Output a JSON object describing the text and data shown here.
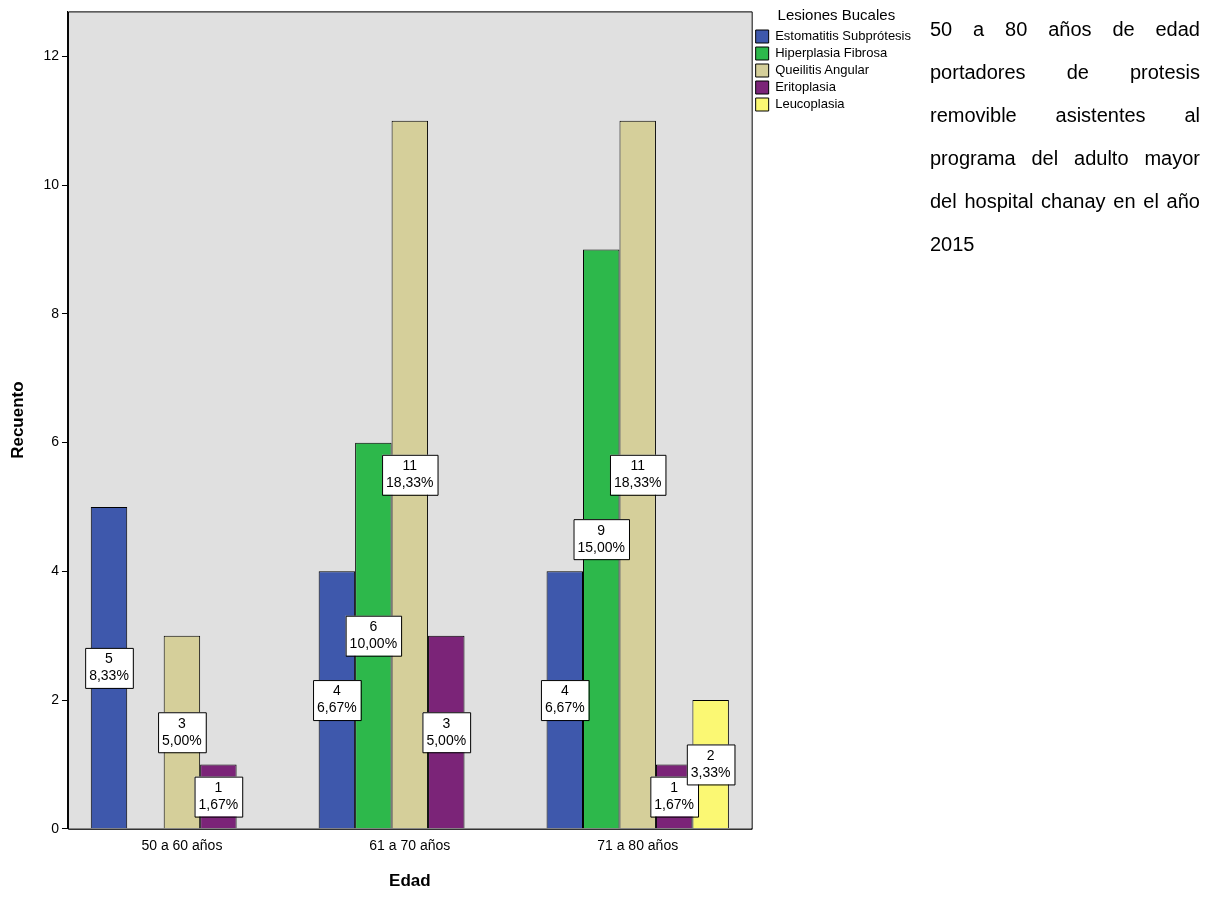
{
  "chart_data": {
    "type": "bar",
    "xlabel": "Edad",
    "ylabel": "Recuento",
    "legend_title": "Lesiones Bucales",
    "categories": [
      "50 a 60 años",
      "61 a 70 años",
      "71 a 80 años"
    ],
    "series": [
      {
        "name": "Estomatitis Subprótesis",
        "color": "#3e58ac",
        "values": [
          5,
          4,
          4
        ],
        "value_labels": [
          "5\n8,33%",
          "4\n6,67%",
          "4\n6,67%"
        ]
      },
      {
        "name": "Hiperplasia Fibrosa",
        "color": "#2db84b",
        "values": [
          null,
          6,
          9
        ],
        "value_labels": [
          null,
          "6\n10,00%",
          "9\n15,00%"
        ]
      },
      {
        "name": "Queilitis Angular",
        "color": "#d5cf9a",
        "values": [
          3,
          11,
          11
        ],
        "value_labels": [
          "3\n5,00%",
          "11\n18,33%",
          "11\n18,33%"
        ]
      },
      {
        "name": "Eritoplasia",
        "color": "#7b2478",
        "values": [
          1,
          3,
          1
        ],
        "value_labels": [
          "1\n1,67%",
          "3\n5,00%",
          "1\n1,67%"
        ]
      },
      {
        "name": "Leucoplasia",
        "color": "#fbf873",
        "values": [
          null,
          null,
          2
        ],
        "value_labels": [
          null,
          null,
          "2\n3,33%"
        ]
      }
    ],
    "ylim": [
      0,
      12.7
    ],
    "yticks": [
      0,
      2,
      4,
      6,
      8,
      10,
      12
    ],
    "grid": false,
    "legend": "top right",
    "annotations": [
      "50 a 80 años de edad portadores de protesis removible asistentes al programa del adulto mayor del hospital chanay en el año 2015"
    ]
  }
}
